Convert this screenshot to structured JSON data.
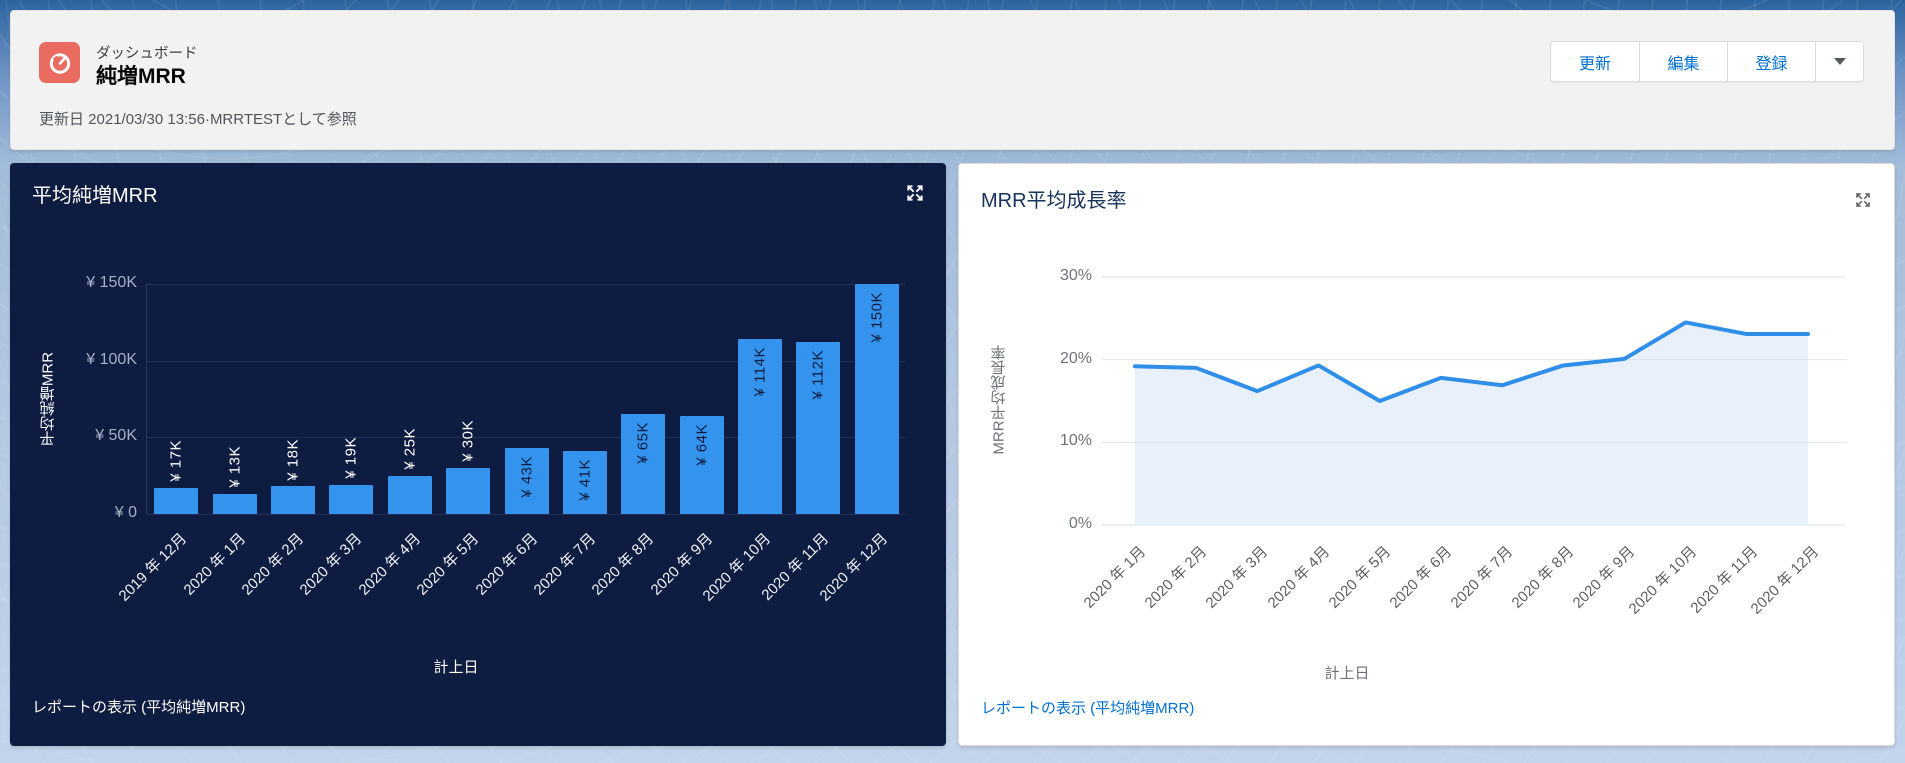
{
  "header": {
    "entity_label": "ダッシュボード",
    "title": "純増MRR",
    "subtitle": "更新日 2021/03/30 13:56·MRRTESTとして参照",
    "icon": "dashboard-gauge-icon",
    "icon_color": "#ea6b5f",
    "actions": {
      "refresh": "更新",
      "edit": "編集",
      "subscribe": "登録"
    }
  },
  "colors": {
    "link_blue": "#0070d2",
    "dark_card_background": "#0e1c42",
    "bar_blue": "#3493ec",
    "line_blue": "#2e8ee8",
    "area_fill": "#e8f1fb"
  },
  "chart_data": [
    {
      "type": "bar",
      "title": "平均純増MRR",
      "categories": [
        "2019 年 12月",
        "2020 年 1月",
        "2020 年 2月",
        "2020 年 3月",
        "2020 年 4月",
        "2020 年 5月",
        "2020 年 6月",
        "2020 年 7月",
        "2020 年 8月",
        "2020 年 9月",
        "2020 年 10月",
        "2020 年 11月",
        "2020 年 12月"
      ],
      "values": [
        17000,
        13000,
        18000,
        19000,
        25000,
        30000,
        43000,
        41000,
        65000,
        64000,
        114000,
        112000,
        150000
      ],
      "value_labels": [
        "¥ 17K",
        "¥ 13K",
        "¥ 18K",
        "¥ 19K",
        "¥ 25K",
        "¥ 30K",
        "¥ 43K",
        "¥ 41K",
        "¥ 65K",
        "¥ 64K",
        "¥ 114K",
        "¥ 112K",
        "¥ 150K"
      ],
      "yticks": [
        {
          "label": "¥ 150K",
          "value": 150000
        },
        {
          "label": "¥ 100K",
          "value": 100000
        },
        {
          "label": "¥ 50K",
          "value": 50000
        },
        {
          "label": "¥ 0",
          "value": 0
        }
      ],
      "ylim": [
        0,
        150000
      ],
      "xlabel": "計上日",
      "ylabel": "平均純増MRR",
      "legend": "none",
      "grid": true,
      "bar_color": "#3493ec",
      "inside_label_threshold": 40000,
      "footer_link": "レポートの表示 (平均純増MRR)"
    },
    {
      "type": "area",
      "title": "MRR平均成長率",
      "categories": [
        "2020 年 1月",
        "2020 年 2月",
        "2020 年 3月",
        "2020 年 4月",
        "2020 年 5月",
        "2020 年 6月",
        "2020 年 7月",
        "2020 年 8月",
        "2020 年 9月",
        "2020 年 10月",
        "2020 年 11月",
        "2020 年 12月"
      ],
      "values": [
        19.2,
        19.0,
        16.2,
        19.3,
        15.0,
        17.8,
        16.9,
        19.3,
        20.1,
        24.5,
        23.1,
        23.1
      ],
      "yticks": [
        {
          "label": "30%",
          "value": 30
        },
        {
          "label": "20%",
          "value": 20
        },
        {
          "label": "10%",
          "value": 10
        },
        {
          "label": "0%",
          "value": 0
        }
      ],
      "ylim": [
        0,
        30
      ],
      "xlabel": "計上日",
      "ylabel": "MRR平均成長率",
      "legend": "none",
      "grid": true,
      "line_color": "#2e8ee8",
      "fill_color": "#e8f1fb",
      "footer_link": "レポートの表示 (平均純増MRR)"
    }
  ]
}
